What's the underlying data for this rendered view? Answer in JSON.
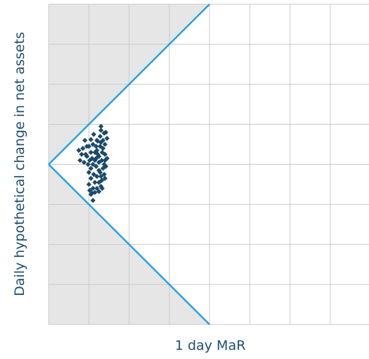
{
  "chart_data": {
    "type": "scatter",
    "title": "",
    "xlabel": "1 day MaR",
    "ylabel": "Daily hypothetical change in net assets",
    "xlim": [
      0,
      8
    ],
    "ylim": [
      -4,
      4
    ],
    "grid": true,
    "shaded_region": {
      "x_from": 0,
      "x_to": 4,
      "color": "#e6e6e6"
    },
    "boundary_lines": {
      "color": "#27a3dd",
      "upper": [
        [
          0,
          0
        ],
        [
          4,
          4
        ]
      ],
      "lower": [
        [
          0,
          0
        ],
        [
          4,
          -4
        ]
      ]
    },
    "marker_color": "#1b4a6b",
    "points": [
      {
        "x": 0.75,
        "y": 0.35
      },
      {
        "x": 0.85,
        "y": 0.4
      },
      {
        "x": 0.9,
        "y": 0.6
      },
      {
        "x": 0.95,
        "y": 0.2
      },
      {
        "x": 1.0,
        "y": 0.45
      },
      {
        "x": 1.05,
        "y": 0.3
      },
      {
        "x": 0.78,
        "y": 0.1
      },
      {
        "x": 0.88,
        "y": 0.05
      },
      {
        "x": 1.1,
        "y": 0.5
      },
      {
        "x": 1.15,
        "y": 0.1
      },
      {
        "x": 1.2,
        "y": 0.35
      },
      {
        "x": 1.25,
        "y": 0.2
      },
      {
        "x": 1.3,
        "y": 0.55
      },
      {
        "x": 1.35,
        "y": 0.4
      },
      {
        "x": 1.4,
        "y": 0.25
      },
      {
        "x": 1.28,
        "y": 0.7
      },
      {
        "x": 1.3,
        "y": 0.85
      },
      {
        "x": 1.38,
        "y": 0.78
      },
      {
        "x": 1.45,
        "y": 0.65
      },
      {
        "x": 1.2,
        "y": 0.6
      },
      {
        "x": 1.12,
        "y": 0.75
      },
      {
        "x": 1.05,
        "y": 0.62
      },
      {
        "x": 0.95,
        "y": 0.45
      },
      {
        "x": 1.25,
        "y": 0.05
      },
      {
        "x": 1.32,
        "y": 0.1
      },
      {
        "x": 1.4,
        "y": 0.1
      },
      {
        "x": 1.18,
        "y": -0.05
      },
      {
        "x": 1.25,
        "y": -0.15
      },
      {
        "x": 1.35,
        "y": -0.1
      },
      {
        "x": 1.42,
        "y": -0.05
      },
      {
        "x": 1.05,
        "y": -0.1
      },
      {
        "x": 1.12,
        "y": -0.25
      },
      {
        "x": 1.2,
        "y": -0.3
      },
      {
        "x": 1.3,
        "y": -0.3
      },
      {
        "x": 1.38,
        "y": -0.25
      },
      {
        "x": 1.0,
        "y": -0.2
      },
      {
        "x": 0.98,
        "y": 0.0
      },
      {
        "x": 1.08,
        "y": 0.15
      },
      {
        "x": 1.15,
        "y": 0.3
      },
      {
        "x": 1.22,
        "y": 0.25
      },
      {
        "x": 1.15,
        "y": -0.45
      },
      {
        "x": 1.25,
        "y": -0.45
      },
      {
        "x": 1.32,
        "y": -0.4
      },
      {
        "x": 1.05,
        "y": -0.35
      },
      {
        "x": 1.1,
        "y": -0.6
      },
      {
        "x": 1.2,
        "y": -0.6
      },
      {
        "x": 1.3,
        "y": -0.55
      },
      {
        "x": 1.0,
        "y": -0.5
      },
      {
        "x": 1.05,
        "y": -0.75
      },
      {
        "x": 1.15,
        "y": -0.7
      },
      {
        "x": 1.02,
        "y": -0.65
      },
      {
        "x": 1.1,
        "y": -0.9
      },
      {
        "x": 1.08,
        "y": -0.72
      },
      {
        "x": 1.25,
        "y": -0.68
      },
      {
        "x": 1.28,
        "y": 0.45
      },
      {
        "x": 1.33,
        "y": 0.3
      },
      {
        "x": 1.35,
        "y": 0.6
      },
      {
        "x": 1.4,
        "y": 0.5
      },
      {
        "x": 1.18,
        "y": 0.45
      },
      {
        "x": 1.22,
        "y": 0.58
      },
      {
        "x": 0.92,
        "y": 0.25
      },
      {
        "x": 0.82,
        "y": 0.25
      },
      {
        "x": 1.38,
        "y": 0.0
      },
      {
        "x": 1.45,
        "y": 0.15
      },
      {
        "x": 1.4,
        "y": -0.35
      },
      {
        "x": 1.28,
        "y": -0.2
      },
      {
        "x": 1.18,
        "y": 0.15
      },
      {
        "x": 1.1,
        "y": 0.0
      },
      {
        "x": 1.02,
        "y": 0.1
      },
      {
        "x": 1.3,
        "y": 0.95
      },
      {
        "x": 1.42,
        "y": 0.8
      },
      {
        "x": 1.33,
        "y": -0.6
      }
    ]
  }
}
